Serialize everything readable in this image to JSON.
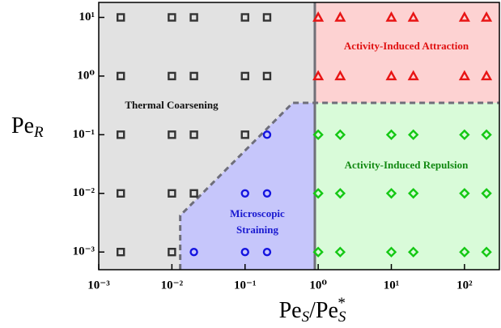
{
  "chart_data": {
    "type": "scatter",
    "xlabel": [
      {
        "text": "Pe"
      },
      {
        "text": "S",
        "sub": true
      },
      {
        "text": "/Pe"
      },
      {
        "text": "S",
        "sub": true
      },
      {
        "text": "*",
        "sup": true
      }
    ],
    "ylabel": [
      {
        "text": "Pe"
      },
      {
        "text": "R",
        "sub": true
      }
    ],
    "log_x": true,
    "log_y": true,
    "xlim": [
      0.001,
      300
    ],
    "ylim": [
      0.0005,
      18
    ],
    "xticks": [
      {
        "value": 0.001,
        "label": "10⁻³"
      },
      {
        "value": 0.01,
        "label": "10⁻²"
      },
      {
        "value": 0.1,
        "label": "10⁻¹"
      },
      {
        "value": 1,
        "label": "10⁰"
      },
      {
        "value": 10,
        "label": "10¹"
      },
      {
        "value": 100,
        "label": "10²"
      }
    ],
    "yticks": [
      {
        "value": 0.001,
        "label": "10⁻³"
      },
      {
        "value": 0.01,
        "label": "10⁻²"
      },
      {
        "value": 0.1,
        "label": "10⁻¹"
      },
      {
        "value": 1,
        "label": "10⁰"
      },
      {
        "value": 10,
        "label": "10¹"
      }
    ],
    "regions": {
      "transition_x": 0.9,
      "attraction_y": 0.35,
      "straining_boundary": [
        [
          0.013,
          0.0042
        ],
        [
          0.45,
          0.35
        ]
      ],
      "colors": {
        "coarsening": "#e2e2e2",
        "straining": "#c6c6fb",
        "attraction": "#fdd2d2",
        "repulsion": "#d9fbd9"
      }
    },
    "annotations": [
      {
        "text": "Thermal Coarsening",
        "color": "#111111"
      },
      {
        "text": "Microscopic",
        "color": "#1a1ad0"
      },
      {
        "text": "Straining",
        "color": "#1a1ad0"
      },
      {
        "text": "Activity-Induced Attraction",
        "color": "#e01010"
      },
      {
        "text": "Activity-Induced Repulsion",
        "color": "#118811"
      }
    ],
    "series": [
      {
        "marker": "square",
        "color": "#333333",
        "x": [
          0.002,
          0.01,
          0.02,
          0.1,
          0.2,
          0.002,
          0.01,
          0.02,
          0.1,
          0.2,
          0.002,
          0.01,
          0.02,
          0.1,
          0.002,
          0.01,
          0.02,
          0.002,
          0.01
        ],
        "y": [
          10,
          10,
          10,
          10,
          10,
          1,
          1,
          1,
          1,
          1,
          0.1,
          0.1,
          0.1,
          0.1,
          0.01,
          0.01,
          0.01,
          0.001,
          0.001
        ]
      },
      {
        "marker": "circle",
        "color": "#1414e0",
        "x": [
          0.2,
          0.1,
          0.2,
          0.02,
          0.1,
          0.2
        ],
        "y": [
          0.1,
          0.01,
          0.01,
          0.001,
          0.001,
          0.001
        ]
      },
      {
        "marker": "triangle",
        "color": "#e81414",
        "x": [
          1,
          2,
          10,
          20,
          100,
          200,
          1,
          2,
          10,
          20,
          100,
          200
        ],
        "y": [
          10,
          10,
          10,
          10,
          10,
          10,
          1,
          1,
          1,
          1,
          1,
          1
        ]
      },
      {
        "marker": "diamond",
        "color": "#14c814",
        "x": [
          1,
          2,
          10,
          20,
          100,
          200,
          1,
          2,
          10,
          20,
          100,
          200,
          1,
          2,
          10,
          20,
          100,
          200
        ],
        "y": [
          0.1,
          0.1,
          0.1,
          0.1,
          0.1,
          0.1,
          0.01,
          0.01,
          0.01,
          0.01,
          0.01,
          0.01,
          0.001,
          0.001,
          0.001,
          0.001,
          0.001,
          0.001
        ]
      }
    ]
  }
}
